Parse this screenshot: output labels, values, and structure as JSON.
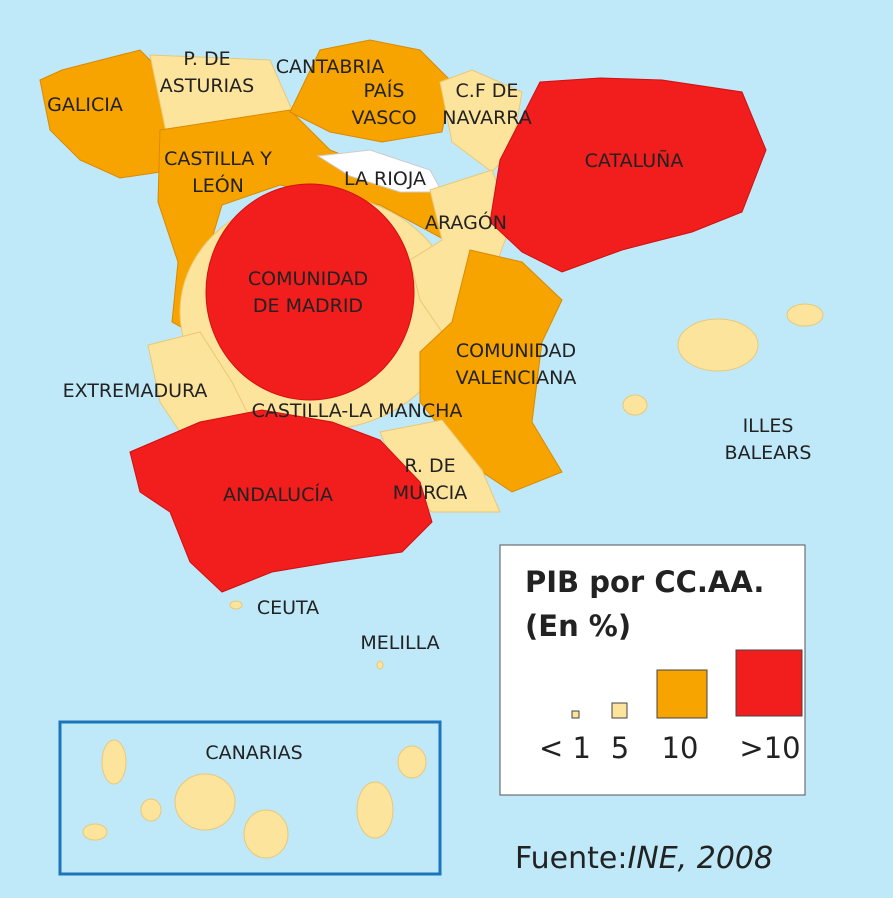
{
  "regions": [
    {
      "label": [
        "GALICIA"
      ]
    },
    {
      "label": [
        "P. DE",
        "ASTURIAS"
      ]
    },
    {
      "label": [
        "CANTABRIA"
      ]
    },
    {
      "label": [
        "PAÍS",
        "VASCO"
      ]
    },
    {
      "label": [
        "C.F DE",
        "NAVARRA"
      ]
    },
    {
      "label": [
        "CASTILLA Y",
        "LEÓN"
      ]
    },
    {
      "label": [
        "LA RIOJA"
      ]
    },
    {
      "label": [
        "CATALUÑA"
      ]
    },
    {
      "label": [
        "ARAGÓN"
      ]
    },
    {
      "label": [
        "COMUNIDAD",
        "DE MADRID"
      ]
    },
    {
      "label": [
        "COMUNIDAD",
        "VALENCIANA"
      ]
    },
    {
      "label": [
        "EXTREMADURA"
      ]
    },
    {
      "label": [
        "CASTILLA-LA MANCHA"
      ]
    },
    {
      "label": [
        "ILLES",
        "BALEARS"
      ]
    },
    {
      "label": [
        "R. DE",
        "MURCIA"
      ]
    },
    {
      "label": [
        "ANDALUCÍA"
      ]
    },
    {
      "label": [
        "CEUTA"
      ]
    },
    {
      "label": [
        "MELILLA"
      ]
    },
    {
      "label": [
        "CANARIAS"
      ]
    }
  ],
  "legend": {
    "title": [
      "PIB por CC.AA.",
      "(En %)"
    ],
    "items": [
      {
        "label": "< 1",
        "color": "#fde49c"
      },
      {
        "label": "5",
        "color": "#fde49c"
      },
      {
        "label": "10",
        "color": "#f7a400"
      },
      {
        "label": ">10",
        "color": "#f21d1d"
      }
    ]
  },
  "source": {
    "prefix": "Fuente:",
    "text": "INE, 2008"
  }
}
